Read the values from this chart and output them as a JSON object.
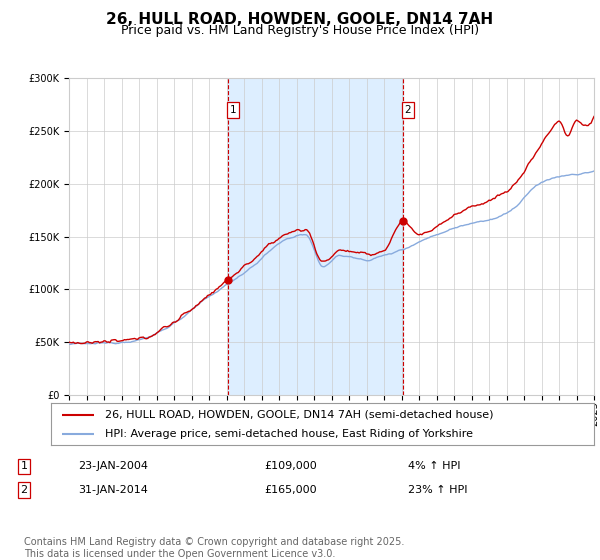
{
  "title": "26, HULL ROAD, HOWDEN, GOOLE, DN14 7AH",
  "subtitle": "Price paid vs. HM Land Registry's House Price Index (HPI)",
  "legend_line1": "26, HULL ROAD, HOWDEN, GOOLE, DN14 7AH (semi-detached house)",
  "legend_line2": "HPI: Average price, semi-detached house, East Riding of Yorkshire",
  "transaction1_date": "23-JAN-2004",
  "transaction1_price": "£109,000",
  "transaction1_hpi": "4% ↑ HPI",
  "transaction2_date": "31-JAN-2014",
  "transaction2_price": "£165,000",
  "transaction2_hpi": "23% ↑ HPI",
  "footer": "Contains HM Land Registry data © Crown copyright and database right 2025.\nThis data is licensed under the Open Government Licence v3.0.",
  "background_color": "#ffffff",
  "plot_bg_color": "#ffffff",
  "shaded_region_color": "#ddeeff",
  "line_color_property": "#cc0000",
  "line_color_hpi": "#88aadd",
  "dashed_line_color": "#cc0000",
  "marker_color": "#cc0000",
  "ylim_min": 0,
  "ylim_max": 300000,
  "year_start": 1995,
  "year_end": 2025,
  "transaction1_year": 2004.07,
  "transaction2_year": 2014.08,
  "title_fontsize": 11,
  "subtitle_fontsize": 9,
  "tick_fontsize": 7,
  "legend_fontsize": 8,
  "footer_fontsize": 7
}
